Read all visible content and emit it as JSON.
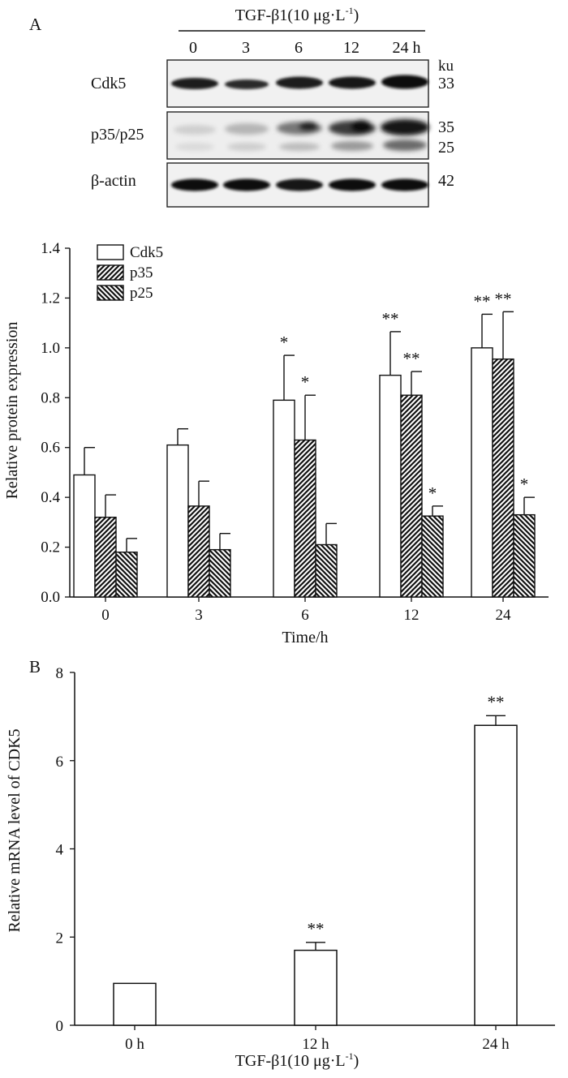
{
  "panels": {
    "a_label": "A",
    "b_label": "B"
  },
  "blot": {
    "treatment_prefix": "TGF-β1(10 μg·L",
    "treatment_sup": "-1",
    "treatment_suffix": ")",
    "lanes": [
      "0",
      "3",
      "6",
      "12",
      "24 h"
    ],
    "ku_label": "ku",
    "rows": [
      {
        "name": "Cdk5",
        "weights": [
          "33"
        ]
      },
      {
        "name": "p35/p25",
        "weights": [
          "35",
          "25"
        ]
      },
      {
        "name": "β-actin",
        "weights": [
          "42"
        ]
      }
    ]
  },
  "chart_data": [
    {
      "type": "bar",
      "panel": "A",
      "xlabel": "Time/h",
      "ylabel": "Relative protein expression",
      "categories": [
        "0",
        "3",
        "6",
        "12",
        "24"
      ],
      "ylim": [
        0,
        1.4
      ],
      "yticks": [
        "0.0",
        "0.2",
        "0.4",
        "0.6",
        "0.8",
        "1.0",
        "1.2",
        "1.4"
      ],
      "legend_position": "top-left",
      "series": [
        {
          "name": "Cdk5",
          "pattern": "open",
          "values": [
            0.49,
            0.61,
            0.79,
            0.89,
            1.0
          ],
          "errors": [
            0.11,
            0.065,
            0.18,
            0.175,
            0.135
          ],
          "significance": [
            "",
            "",
            "*",
            "**",
            "**"
          ]
        },
        {
          "name": "p35",
          "pattern": "hatch-right",
          "values": [
            0.32,
            0.365,
            0.63,
            0.81,
            0.955
          ],
          "errors": [
            0.09,
            0.1,
            0.18,
            0.095,
            0.19
          ],
          "significance": [
            "",
            "",
            "*",
            "**",
            "**"
          ]
        },
        {
          "name": "p25",
          "pattern": "hatch-left",
          "values": [
            0.18,
            0.19,
            0.21,
            0.325,
            0.33
          ],
          "errors": [
            0.055,
            0.065,
            0.085,
            0.04,
            0.07
          ],
          "significance": [
            "",
            "",
            "",
            "*",
            "*"
          ]
        }
      ]
    },
    {
      "type": "bar",
      "panel": "B",
      "xlabel_prefix": "TGF-β1(10 μg·L",
      "xlabel_sup": "-1",
      "xlabel_suffix": ")",
      "ylabel": "Relative mRNA level of CDK5",
      "categories": [
        "0 h",
        "12 h",
        "24 h"
      ],
      "ylim": [
        0,
        8
      ],
      "yticks": [
        "0",
        "2",
        "4",
        "6",
        "8"
      ],
      "values": [
        0.95,
        1.7,
        6.8
      ],
      "errors": [
        0,
        0.18,
        0.22
      ],
      "significance": [
        "",
        "**",
        "**"
      ]
    }
  ]
}
